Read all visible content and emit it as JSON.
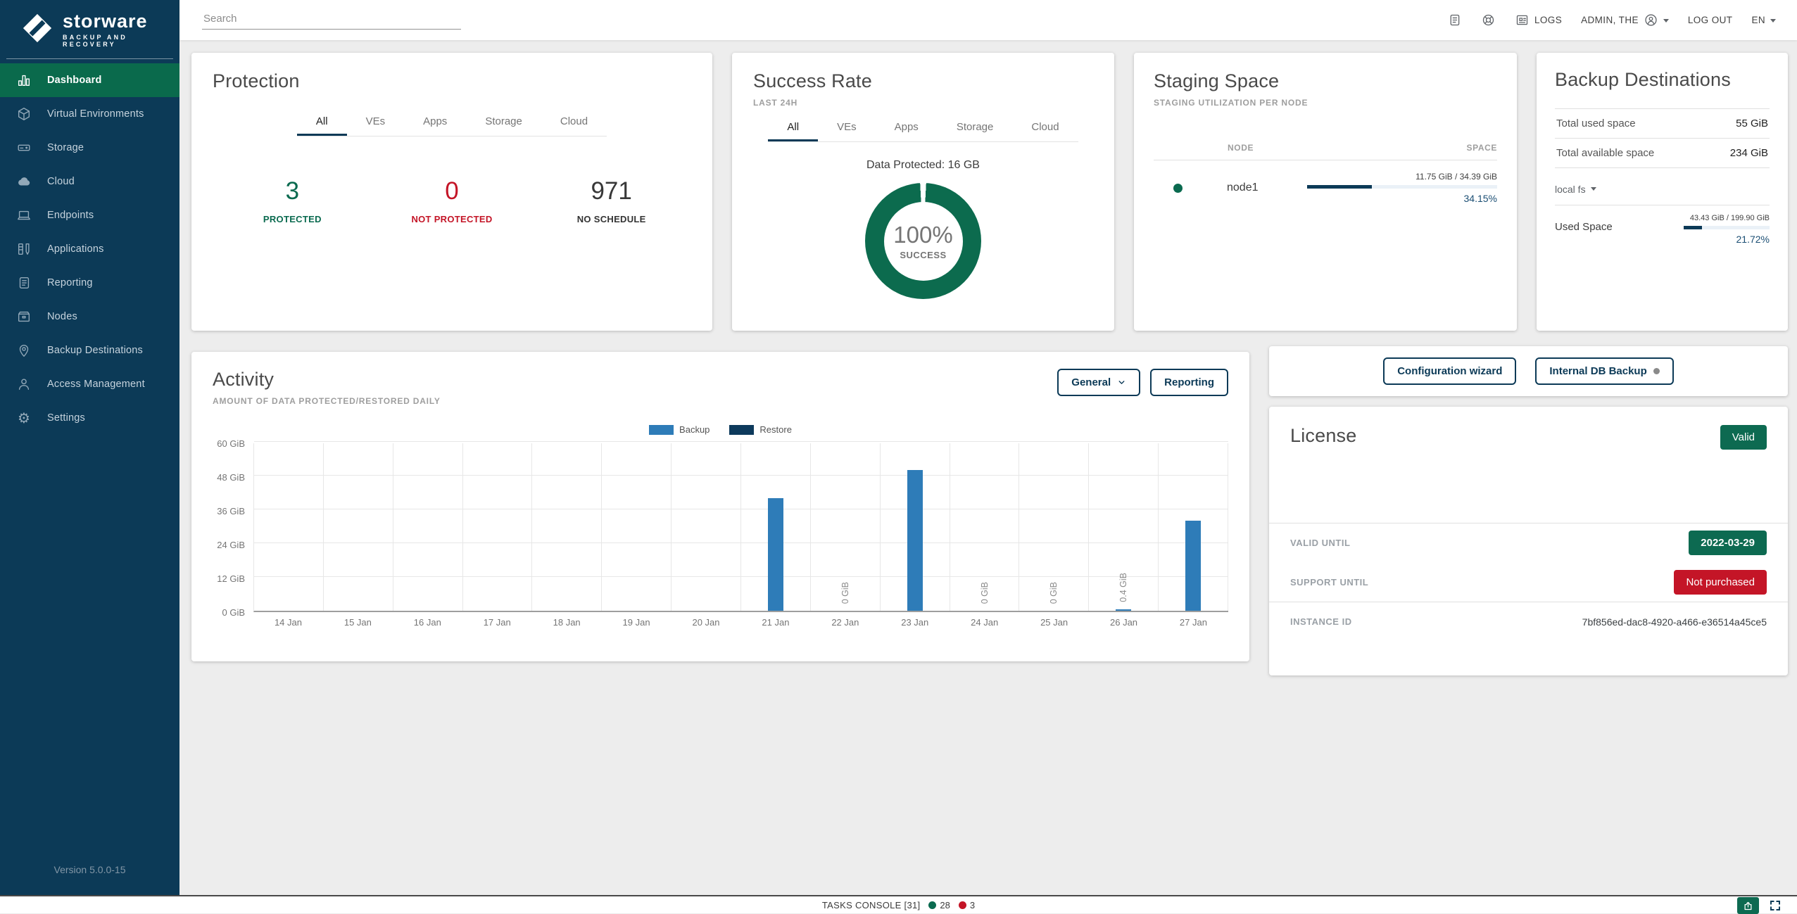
{
  "brand": {
    "name": "storware",
    "tagline": "BACKUP AND RECOVERY",
    "version": "Version 5.0.0-15"
  },
  "topbar": {
    "search_placeholder": "Search",
    "logs_label": "LOGS",
    "user_label": "ADMIN, THE",
    "logout_label": "LOG OUT",
    "language": "EN"
  },
  "sidebar": {
    "items": [
      {
        "label": "Dashboard",
        "icon": "dashboard-icon",
        "active": true
      },
      {
        "label": "Virtual Environments",
        "icon": "virtual-environments-icon",
        "active": false
      },
      {
        "label": "Storage",
        "icon": "storage-icon",
        "active": false
      },
      {
        "label": "Cloud",
        "icon": "cloud-icon",
        "active": false
      },
      {
        "label": "Endpoints",
        "icon": "endpoints-icon",
        "active": false
      },
      {
        "label": "Applications",
        "icon": "applications-icon",
        "active": false
      },
      {
        "label": "Reporting",
        "icon": "reporting-icon",
        "active": false
      },
      {
        "label": "Nodes",
        "icon": "nodes-icon",
        "active": false
      },
      {
        "label": "Backup Destinations",
        "icon": "backup-destinations-icon",
        "active": false
      },
      {
        "label": "Access Management",
        "icon": "access-management-icon",
        "active": false
      },
      {
        "label": "Settings",
        "icon": "settings-icon",
        "active": false
      }
    ]
  },
  "tabs": [
    "All",
    "VEs",
    "Apps",
    "Storage",
    "Cloud"
  ],
  "protection": {
    "title": "Protection",
    "stats": [
      {
        "value": "3",
        "label": "PROTECTED",
        "color": "green"
      },
      {
        "value": "0",
        "label": "NOT PROTECTED",
        "color": "red"
      },
      {
        "value": "971",
        "label": "NO SCHEDULE",
        "color": "dark"
      }
    ]
  },
  "success": {
    "title": "Success Rate",
    "subtitle": "LAST 24H",
    "data_protected": "Data Protected: 16 GB",
    "percent": "100%",
    "percent_label": "SUCCESS"
  },
  "staging": {
    "title": "Staging Space",
    "subtitle": "STAGING UTILIZATION PER NODE",
    "node_column": "NODE",
    "space_column": "SPACE",
    "rows": [
      {
        "node": "node1",
        "usage": "11.75 GiB / 34.39 GiB",
        "percent": "34.15%",
        "percent_value": 34.15
      }
    ]
  },
  "backup_destinations": {
    "title": "Backup Destinations",
    "total_used_label": "Total used space",
    "total_used_value": "55 GiB",
    "total_available_label": "Total available space",
    "total_available_value": "234 GiB",
    "selector": "local fs",
    "used_space_label": "Used Space",
    "usage": "43.43 GiB / 199.90 GiB",
    "percent": "21.72%",
    "percent_value": 21.72
  },
  "activity": {
    "title": "Activity",
    "subtitle": "AMOUNT OF DATA PROTECTED/RESTORED DAILY",
    "general_button": "General",
    "reporting_button": "Reporting"
  },
  "chart_data": {
    "type": "bar",
    "title": "Activity - amount of data protected/restored daily",
    "xlabel": "",
    "ylabel": "",
    "ylim": [
      0,
      60
    ],
    "yticks": [
      "0 GiB",
      "12 GiB",
      "24 GiB",
      "36 GiB",
      "48 GiB",
      "60 GiB"
    ],
    "grid": true,
    "legend_position": "top",
    "categories": [
      "14 Jan",
      "15 Jan",
      "16 Jan",
      "17 Jan",
      "18 Jan",
      "19 Jan",
      "20 Jan",
      "21 Jan",
      "22 Jan",
      "23 Jan",
      "24 Jan",
      "25 Jan",
      "26 Jan",
      "27 Jan"
    ],
    "series": [
      {
        "name": "Backup",
        "color": "#2e7cb8",
        "values": [
          0,
          0,
          0,
          0,
          0,
          0,
          0,
          40,
          0,
          50,
          0,
          0,
          0.4,
          32
        ]
      },
      {
        "name": "Restore",
        "color": "#0d3a5c",
        "values": [
          0,
          0,
          0,
          0,
          0,
          0,
          0,
          0,
          0,
          0,
          0,
          0,
          0,
          0
        ]
      }
    ],
    "point_labels": [
      null,
      null,
      null,
      null,
      null,
      null,
      null,
      null,
      "0 GiB",
      null,
      "0 GiB",
      "0 GiB",
      "0.4 GiB",
      null
    ]
  },
  "actions": {
    "config_wizard": "Configuration wizard",
    "internal_db": "Internal DB Backup"
  },
  "license": {
    "title": "License",
    "status": "Valid",
    "valid_until_label": "VALID UNTIL",
    "valid_until_value": "2022-03-29",
    "support_until_label": "SUPPORT UNTIL",
    "support_until_value": "Not purchased",
    "instance_id_label": "INSTANCE ID",
    "instance_id_value": "7bf856ed-dac8-4920-a466-e36514a45ce5"
  },
  "console": {
    "label": "TASKS CONSOLE [31]",
    "success_count": "28",
    "failed_count": "3"
  },
  "colors": {
    "navy": "#0c3a57",
    "green": "#0a6a4f",
    "red": "#c41527",
    "backup_blue": "#2e7cb8",
    "restore_navy": "#0d3a5c",
    "background": "#ededed",
    "success_dot": "#0a6a4f",
    "failed_dot": "#c41527"
  }
}
